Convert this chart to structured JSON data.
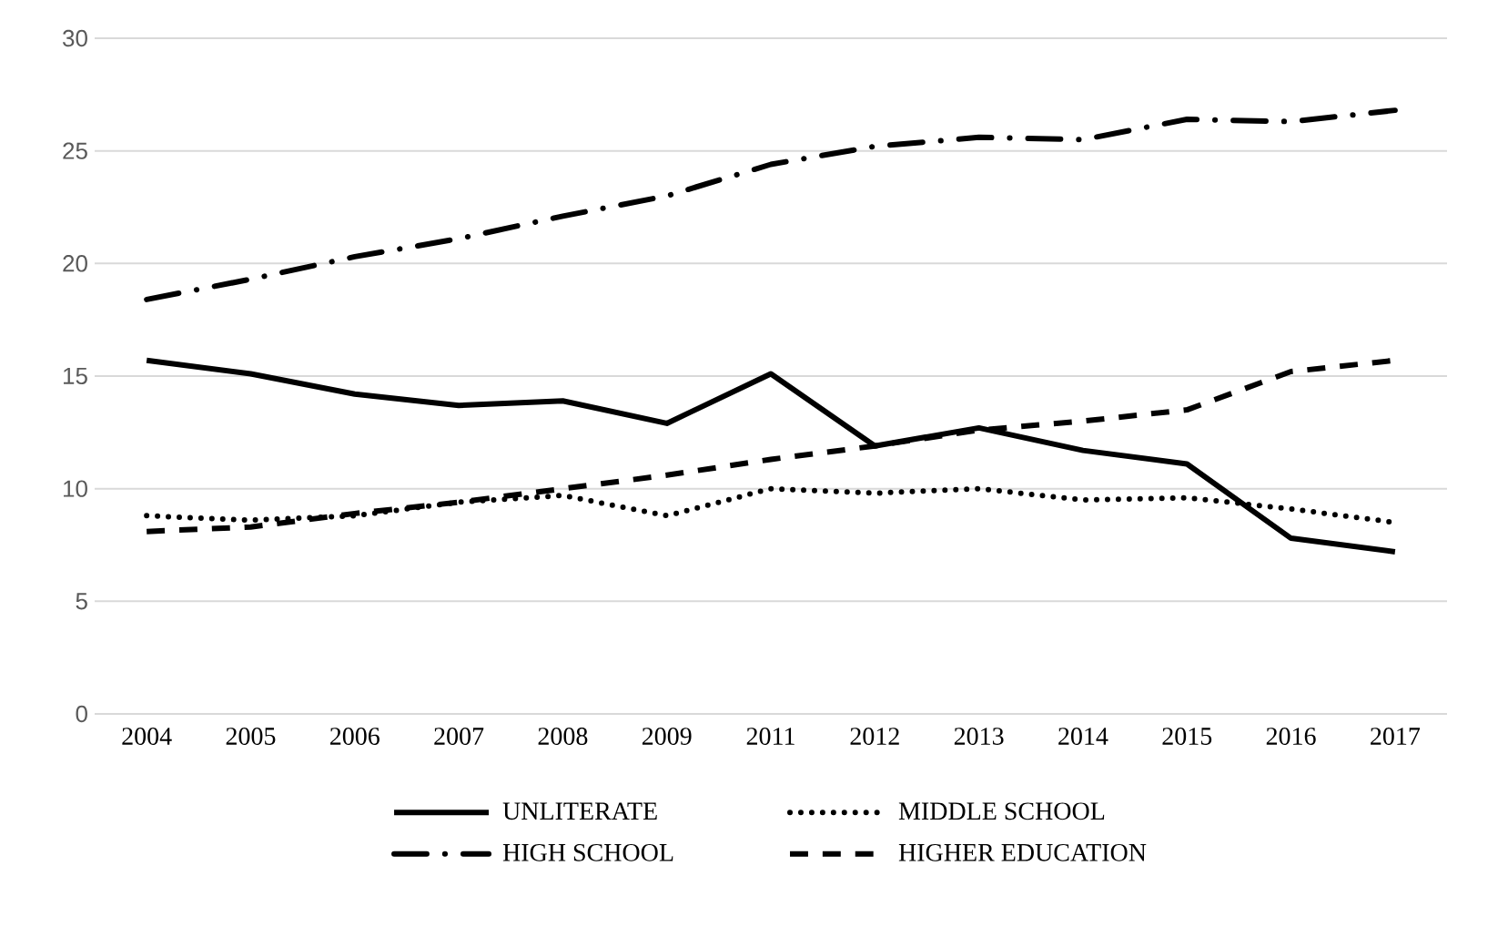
{
  "chart_data": {
    "type": "line",
    "categories": [
      "2004",
      "2005",
      "2006",
      "2007",
      "2008",
      "2009",
      "2011",
      "2012",
      "2013",
      "2014",
      "2015",
      "2016",
      "2017"
    ],
    "series": [
      {
        "name": "UNLITERATE",
        "color": "#000000",
        "line_style": "solid",
        "values": [
          15.7,
          15.1,
          14.2,
          13.7,
          13.9,
          12.9,
          15.1,
          11.9,
          12.7,
          11.7,
          11.1,
          7.8,
          7.2
        ]
      },
      {
        "name": "MIDDLE SCHOOL",
        "color": "#000000",
        "line_style": "dotted",
        "values": [
          8.8,
          8.6,
          8.8,
          9.4,
          9.7,
          8.8,
          10.0,
          9.8,
          10.0,
          9.5,
          9.6,
          9.1,
          8.5
        ]
      },
      {
        "name": "HIGH SCHOOL",
        "color": "#000000",
        "line_style": "dashdot",
        "values": [
          18.4,
          19.3,
          20.3,
          21.1,
          22.1,
          23.0,
          24.4,
          25.2,
          25.6,
          25.5,
          26.4,
          26.3,
          26.8
        ]
      },
      {
        "name": "HIGHER EDUCATION",
        "color": "#000000",
        "line_style": "dashed",
        "values": [
          8.1,
          8.3,
          8.9,
          9.4,
          10.0,
          10.6,
          11.3,
          11.9,
          12.6,
          13.0,
          13.5,
          15.2,
          15.7
        ]
      }
    ],
    "ylim": [
      0,
      30
    ],
    "yticks": [
      0,
      5,
      10,
      15,
      20,
      25,
      30
    ],
    "grid": "y",
    "legend": "bottom",
    "marker": "none"
  }
}
